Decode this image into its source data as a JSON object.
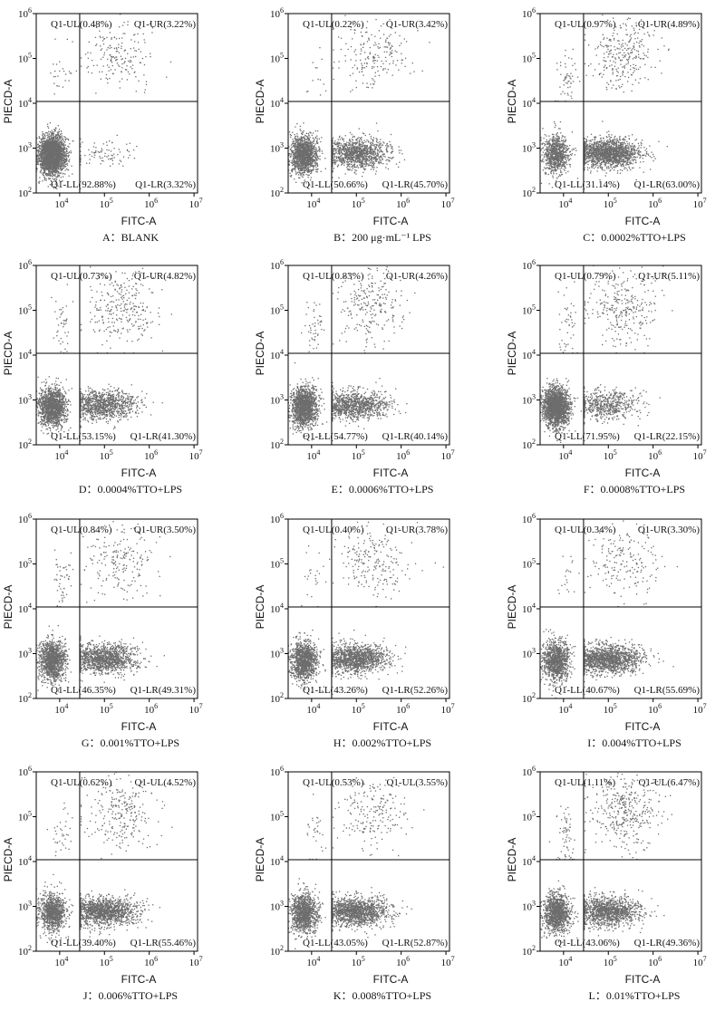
{
  "figure": {
    "xlabel": "FITC-A",
    "ylabel": "PIECD-A",
    "x_ticks": [
      "10^4",
      "10^5",
      "10^6",
      "10^7"
    ],
    "y_ticks": [
      "10^2",
      "10^3",
      "10^4",
      "10^5",
      "10^6"
    ]
  },
  "chart_data": [
    {
      "type": "scatter",
      "caption": "A：BLANK",
      "xscale": "log",
      "yscale": "log",
      "xlim": [
        3000,
        12000000
      ],
      "ylim": [
        100,
        1000000
      ],
      "gate": {
        "x": 28000,
        "y": 11000
      },
      "quadrants": {
        "ul": "Q1-UL(0.48%)",
        "ur": "Q1-UR(3.22%)",
        "ll": "Q1-LL(92.88%)",
        "lr": "Q1-LR(3.32%)"
      },
      "percent": {
        "ul": 0.48,
        "ur": 3.22,
        "ll": 92.88,
        "lr": 3.32
      }
    },
    {
      "type": "scatter",
      "caption": "B：200 μg·mL⁻¹ LPS",
      "xscale": "log",
      "yscale": "log",
      "xlim": [
        3000,
        12000000
      ],
      "ylim": [
        100,
        1000000
      ],
      "gate": {
        "x": 28000,
        "y": 11000
      },
      "quadrants": {
        "ul": "Q1-UL(0.22%)",
        "ur": "Q1-UR(3.42%)",
        "ll": "Q1-LL(50.66%)",
        "lr": "Q1-LR(45.70%)"
      },
      "percent": {
        "ul": 0.22,
        "ur": 3.42,
        "ll": 50.66,
        "lr": 45.7
      }
    },
    {
      "type": "scatter",
      "caption": "C：0.0002%TTO+LPS",
      "xscale": "log",
      "yscale": "log",
      "xlim": [
        3000,
        12000000
      ],
      "ylim": [
        100,
        1000000
      ],
      "gate": {
        "x": 28000,
        "y": 11000
      },
      "quadrants": {
        "ul": "Q1-UL(0.97%)",
        "ur": "Q1-UR(4.89%)",
        "ll": "Q1-LL(31.14%)",
        "lr": "Q1-LR(63.00%)"
      },
      "percent": {
        "ul": 0.97,
        "ur": 4.89,
        "ll": 31.14,
        "lr": 63.0
      }
    },
    {
      "type": "scatter",
      "caption": "D：0.0004%TTO+LPS",
      "xscale": "log",
      "yscale": "log",
      "xlim": [
        3000,
        12000000
      ],
      "ylim": [
        100,
        1000000
      ],
      "gate": {
        "x": 28000,
        "y": 11000
      },
      "quadrants": {
        "ul": "Q1-UL(0.73%)",
        "ur": "Q1-UR(4.82%)",
        "ll": "Q1-LL(53.15%)",
        "lr": "Q1-LR(41.30%)"
      },
      "percent": {
        "ul": 0.73,
        "ur": 4.82,
        "ll": 53.15,
        "lr": 41.3
      }
    },
    {
      "type": "scatter",
      "caption": "E：0.0006%TTO+LPS",
      "xscale": "log",
      "yscale": "log",
      "xlim": [
        3000,
        12000000
      ],
      "ylim": [
        100,
        1000000
      ],
      "gate": {
        "x": 28000,
        "y": 11000
      },
      "quadrants": {
        "ul": "Q1-UL(0.83%)",
        "ur": "Q1-UR(4.26%)",
        "ll": "Q1-LL(54.77%)",
        "lr": "Q1-LR(40.14%)"
      },
      "percent": {
        "ul": 0.83,
        "ur": 4.26,
        "ll": 54.77,
        "lr": 40.14
      }
    },
    {
      "type": "scatter",
      "caption": "F：0.0008%TTO+LPS",
      "xscale": "log",
      "yscale": "log",
      "xlim": [
        3000,
        12000000
      ],
      "ylim": [
        100,
        1000000
      ],
      "gate": {
        "x": 28000,
        "y": 11000
      },
      "quadrants": {
        "ul": "Q1-UL(0.79%)",
        "ur": "Q1-UR(5.11%)",
        "ll": "Q1-LL(71.95%)",
        "lr": "Q1-LR(22.15%)"
      },
      "percent": {
        "ul": 0.79,
        "ur": 5.11,
        "ll": 71.95,
        "lr": 22.15
      }
    },
    {
      "type": "scatter",
      "caption": "G：0.001%TTO+LPS",
      "xscale": "log",
      "yscale": "log",
      "xlim": [
        3000,
        12000000
      ],
      "ylim": [
        100,
        1000000
      ],
      "gate": {
        "x": 28000,
        "y": 11000
      },
      "quadrants": {
        "ul": "Q1-UL(0.84%)",
        "ur": "Q1-UR(3.50%)",
        "ll": "Q1-LL(46.35%)",
        "lr": "Q1-LR(49.31%)"
      },
      "percent": {
        "ul": 0.84,
        "ur": 3.5,
        "ll": 46.35,
        "lr": 49.31
      }
    },
    {
      "type": "scatter",
      "caption": "H：0.002%TTO+LPS",
      "xscale": "log",
      "yscale": "log",
      "xlim": [
        3000,
        12000000
      ],
      "ylim": [
        100,
        1000000
      ],
      "gate": {
        "x": 28000,
        "y": 11000
      },
      "quadrants": {
        "ul": "Q1-UL(0.40%)",
        "ur": "Q1-UR(3.78%)",
        "ll": "Q1-LL(43.26%)",
        "lr": "Q1-LR(52.26%)"
      },
      "percent": {
        "ul": 0.4,
        "ur": 3.78,
        "ll": 43.26,
        "lr": 52.26
      }
    },
    {
      "type": "scatter",
      "caption": "I：0.004%TTO+LPS",
      "xscale": "log",
      "yscale": "log",
      "xlim": [
        3000,
        12000000
      ],
      "ylim": [
        100,
        1000000
      ],
      "gate": {
        "x": 28000,
        "y": 11000
      },
      "quadrants": {
        "ul": "Q1-UL(0.34%)",
        "ur": "Q1-UR(3.30%)",
        "ll": "Q1-LL(40.67%)",
        "lr": "Q1-LR(55.69%)"
      },
      "percent": {
        "ul": 0.34,
        "ur": 3.3,
        "ll": 40.67,
        "lr": 55.69
      }
    },
    {
      "type": "scatter",
      "caption": "J：0.006%TTO+LPS",
      "xscale": "log",
      "yscale": "log",
      "xlim": [
        3000,
        12000000
      ],
      "ylim": [
        100,
        1000000
      ],
      "gate": {
        "x": 28000,
        "y": 11000
      },
      "quadrants": {
        "ul": "Q1-UL(0.62%)",
        "ur": "Q1-UL(4.52%)",
        "ll": "Q1-LL(39.40%)",
        "lr": "Q1-LR(55.46%)"
      },
      "percent": {
        "ul": 0.62,
        "ur": 4.52,
        "ll": 39.4,
        "lr": 55.46
      }
    },
    {
      "type": "scatter",
      "caption": "K：0.008%TTO+LPS",
      "xscale": "log",
      "yscale": "log",
      "xlim": [
        3000,
        12000000
      ],
      "ylim": [
        100,
        1000000
      ],
      "gate": {
        "x": 28000,
        "y": 11000
      },
      "quadrants": {
        "ul": "Q1-UL(0.53%)",
        "ur": "Q1-UL(3.55%)",
        "ll": "Q1-LL(43.05%)",
        "lr": "Q1-LR(52.87%)"
      },
      "percent": {
        "ul": 0.53,
        "ur": 3.55,
        "ll": 43.05,
        "lr": 52.87
      }
    },
    {
      "type": "scatter",
      "caption": "L：0.01%TTO+LPS",
      "xscale": "log",
      "yscale": "log",
      "xlim": [
        3000,
        12000000
      ],
      "ylim": [
        100,
        1000000
      ],
      "gate": {
        "x": 28000,
        "y": 11000
      },
      "quadrants": {
        "ul": "Q1-UL(1.11%)",
        "ur": "Q1-UL(6.47%)",
        "ll": "Q1-LL(43.06%)",
        "lr": "Q1-LR(49.36%)"
      },
      "percent": {
        "ul": 1.11,
        "ur": 6.47,
        "ll": 43.06,
        "lr": 49.36
      }
    }
  ],
  "style": {
    "dot_color": "#6d6d6d",
    "axis_color": "#000000"
  }
}
